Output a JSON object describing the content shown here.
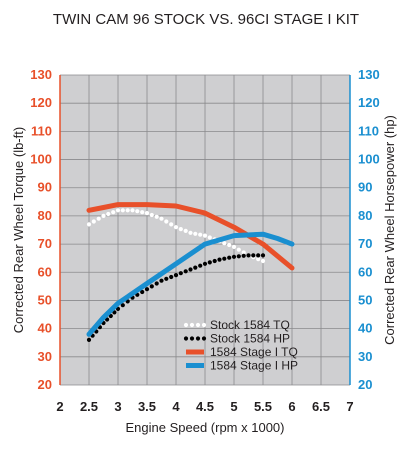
{
  "chart_data": {
    "type": "line",
    "title": "TWIN CAM 96 STOCK VS. 96CI STAGE I KIT",
    "xlabel": "Engine Speed (rpm x 1000)",
    "ylabel_left": "Corrected Rear Wheel Torque (lb-ft)",
    "ylabel_right": "Corrected Rear Wheel Horsepower (hp)",
    "xlim": [
      2,
      7
    ],
    "ylim": [
      20,
      130
    ],
    "x_ticks": [
      "2",
      "2.5",
      "3",
      "3.5",
      "4",
      "4.5",
      "5",
      "5.5",
      "6",
      "6.5",
      "7"
    ],
    "y_ticks_left": [
      "130",
      "120",
      "110",
      "100",
      "90",
      "80",
      "70",
      "60",
      "50",
      "40",
      "30",
      "20"
    ],
    "y_ticks_right": [
      "130",
      "120",
      "110",
      "100",
      "90",
      "80",
      "70",
      "60",
      "50",
      "40",
      "30",
      "20"
    ],
    "grid": true,
    "legend_position": "bottom-right",
    "series": [
      {
        "name": "Stock 1584 TQ",
        "style": "white-dotted",
        "color": "#ffffff",
        "x": [
          2.5,
          2.75,
          3.0,
          3.25,
          3.5,
          3.75,
          4.0,
          4.25,
          4.5,
          4.75,
          5.0,
          5.25,
          5.5
        ],
        "y": [
          77,
          80,
          82,
          82,
          81,
          79,
          76,
          74,
          73,
          71,
          69,
          66,
          64
        ]
      },
      {
        "name": "Stock 1584 HP",
        "style": "black-dotted",
        "color": "#000000",
        "x": [
          2.5,
          2.75,
          3.0,
          3.25,
          3.5,
          3.75,
          4.0,
          4.25,
          4.5,
          4.75,
          5.0,
          5.25,
          5.5
        ],
        "y": [
          36,
          42,
          47,
          51,
          54,
          57,
          59,
          61,
          63,
          64.5,
          65.5,
          66,
          66
        ]
      },
      {
        "name": "1584 Stage I TQ",
        "style": "solid",
        "color": "#e8502a",
        "x": [
          2.5,
          2.75,
          3.0,
          3.5,
          4.0,
          4.5,
          5.0,
          5.5,
          6.0
        ],
        "y": [
          82,
          83,
          84,
          84,
          83.5,
          81,
          76,
          70,
          61.5
        ]
      },
      {
        "name": "1584 Stage I HP",
        "style": "solid",
        "color": "#1a8fd0",
        "x": [
          2.5,
          2.75,
          3.0,
          3.5,
          4.0,
          4.5,
          5.0,
          5.5,
          5.75,
          6.0
        ],
        "y": [
          38,
          44,
          49,
          56,
          63,
          70,
          73,
          73.5,
          72,
          70
        ]
      }
    ]
  }
}
